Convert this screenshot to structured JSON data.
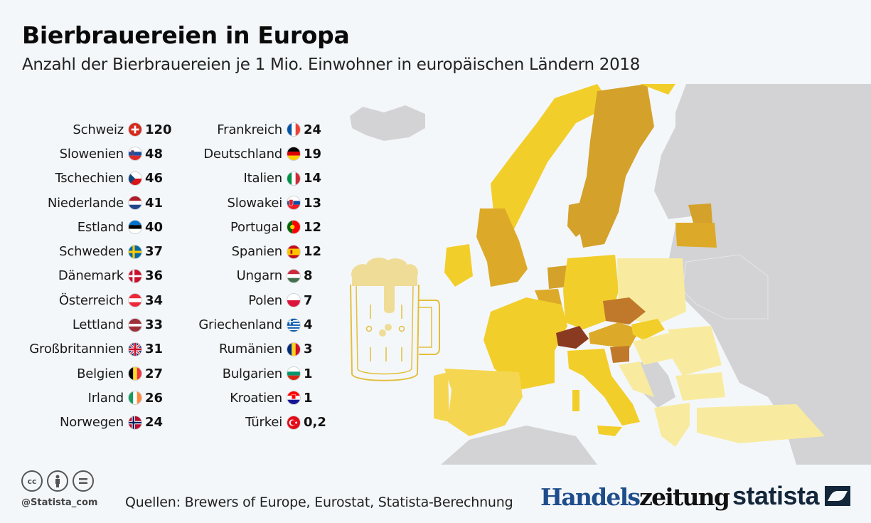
{
  "header": {
    "title": "Bierbrauereien in Europa",
    "subtitle": "Anzahl der Bierbrauereien je 1 Mio. Einwohner in europäischen Ländern 2018"
  },
  "chart_data": {
    "type": "table",
    "title": "Bierbrauereien in Europa",
    "subtitle": "Anzahl der Bierbrauereien je 1 Mio. Einwohner in europäischen Ländern 2018",
    "unit": "Bierbrauereien je 1 Mio. Einwohner",
    "year": 2018,
    "categories": [
      "Schweiz",
      "Slowenien",
      "Tschechien",
      "Niederlande",
      "Estland",
      "Schweden",
      "Dänemark",
      "Österreich",
      "Lettland",
      "Großbritannien",
      "Belgien",
      "Irland",
      "Norwegen",
      "Frankreich",
      "Deutschland",
      "Italien",
      "Slowakei",
      "Portugal",
      "Spanien",
      "Ungarn",
      "Polen",
      "Griechenland",
      "Rumänien",
      "Bulgarien",
      "Kroatien",
      "Türkei"
    ],
    "values": [
      120,
      48,
      46,
      41,
      40,
      37,
      36,
      34,
      33,
      31,
      27,
      26,
      24,
      24,
      19,
      14,
      13,
      12,
      12,
      8,
      7,
      4,
      3,
      1,
      1,
      0.2
    ],
    "map": "choropleth of Europe, darker = more breweries per million inhabitants; grey = no data"
  },
  "list": {
    "col1": [
      {
        "name": "Schweiz",
        "value": "120",
        "flag": "ch"
      },
      {
        "name": "Slowenien",
        "value": "48",
        "flag": "si"
      },
      {
        "name": "Tschechien",
        "value": "46",
        "flag": "cz"
      },
      {
        "name": "Niederlande",
        "value": "41",
        "flag": "nl"
      },
      {
        "name": "Estland",
        "value": "40",
        "flag": "ee"
      },
      {
        "name": "Schweden",
        "value": "37",
        "flag": "se"
      },
      {
        "name": "Dänemark",
        "value": "36",
        "flag": "dk"
      },
      {
        "name": "Österreich",
        "value": "34",
        "flag": "at"
      },
      {
        "name": "Lettland",
        "value": "33",
        "flag": "lv"
      },
      {
        "name": "Großbritannien",
        "value": "31",
        "flag": "gb"
      },
      {
        "name": "Belgien",
        "value": "27",
        "flag": "be"
      },
      {
        "name": "Irland",
        "value": "26",
        "flag": "ie"
      },
      {
        "name": "Norwegen",
        "value": "24",
        "flag": "no"
      }
    ],
    "col2": [
      {
        "name": "Frankreich",
        "value": "24",
        "flag": "fr"
      },
      {
        "name": "Deutschland",
        "value": "19",
        "flag": "de"
      },
      {
        "name": "Italien",
        "value": "14",
        "flag": "it"
      },
      {
        "name": "Slowakei",
        "value": "13",
        "flag": "sk"
      },
      {
        "name": "Portugal",
        "value": "12",
        "flag": "pt"
      },
      {
        "name": "Spanien",
        "value": "12",
        "flag": "es"
      },
      {
        "name": "Ungarn",
        "value": "8",
        "flag": "hu"
      },
      {
        "name": "Polen",
        "value": "7",
        "flag": "pl"
      },
      {
        "name": "Griechenland",
        "value": "4",
        "flag": "gr"
      },
      {
        "name": "Rumänien",
        "value": "3",
        "flag": "ro"
      },
      {
        "name": "Bulgarien",
        "value": "1",
        "flag": "bg"
      },
      {
        "name": "Kroatien",
        "value": "1",
        "flag": "hr"
      },
      {
        "name": "Türkei",
        "value": "0,2",
        "flag": "tr"
      }
    ]
  },
  "colors": {
    "level_120": "#8b3a22",
    "level_40_50": "#c0782a",
    "level_30_40": "#d4a12a",
    "level_25_30": "#dcaa28",
    "level_10_25": "#f2ce2b",
    "level_5_10": "#f5d650",
    "level_0_5": "#f8eba0",
    "no_data": "#d3d3d5",
    "background": "#f4f7fa",
    "mug": "#e9c84a"
  },
  "footer": {
    "cc_icons": [
      "cc",
      "by",
      "nd"
    ],
    "handle": "@Statista_com",
    "sources": "Quellen: Brewers of Europe, Eurostat, Statista-Berechnung",
    "logo_hz_a": "Handels",
    "logo_hz_b": "zeitung",
    "logo_statista": "statista"
  }
}
